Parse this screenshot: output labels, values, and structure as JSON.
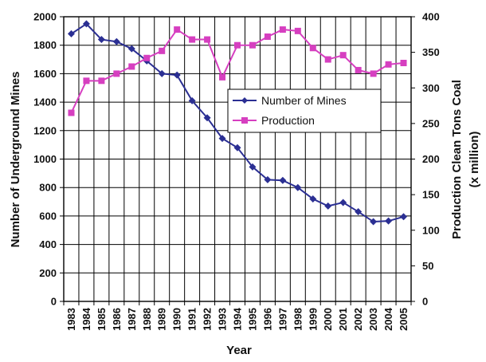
{
  "chart_data": {
    "type": "line",
    "title": "",
    "xlabel": "Year",
    "ylabel_left": "Number of Underground Mines",
    "ylabel_right_line1": "Production Clean Tons Coal",
    "ylabel_right_line2": "(x million)",
    "categories": [
      "1983",
      "1984",
      "1985",
      "1986",
      "1987",
      "1988",
      "1989",
      "1990",
      "1991",
      "1992",
      "1993",
      "1994",
      "1995",
      "1996",
      "1997",
      "1998",
      "1999",
      "2000",
      "2001",
      "2002",
      "2003",
      "2004",
      "2005"
    ],
    "ylim_left": [
      0,
      2000
    ],
    "yticks_left": [
      "0",
      "200",
      "400",
      "600",
      "800",
      "1000",
      "1200",
      "1400",
      "1600",
      "1800",
      "2000"
    ],
    "ylim_right": [
      0,
      400
    ],
    "yticks_right": [
      "0",
      "50",
      "100",
      "150",
      "200",
      "250",
      "300",
      "350",
      "400"
    ],
    "grid": true,
    "legend_position": "center-right",
    "series": [
      {
        "name": "Number of Mines",
        "axis": "left",
        "color": "#2b2f93",
        "marker": "diamond",
        "values": [
          1880,
          1950,
          1840,
          1825,
          1775,
          1690,
          1600,
          1590,
          1410,
          1290,
          1145,
          1080,
          945,
          855,
          850,
          800,
          720,
          670,
          695,
          630,
          560,
          565,
          595
        ]
      },
      {
        "name": "Production",
        "axis": "right",
        "color": "#d63fc0",
        "marker": "square",
        "values": [
          265,
          310,
          310,
          320,
          330,
          342,
          352,
          382,
          368,
          368,
          315,
          360,
          360,
          372,
          382,
          380,
          356,
          340,
          346,
          325,
          320,
          333,
          335
        ]
      }
    ]
  }
}
